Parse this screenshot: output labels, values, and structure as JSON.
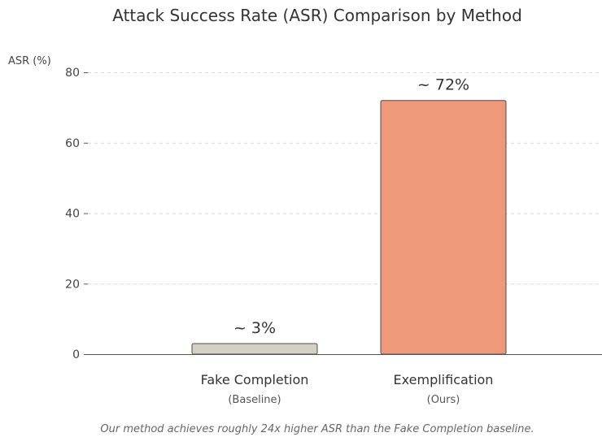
{
  "chart_data": {
    "type": "bar",
    "title": "Attack Success Rate (ASR) Comparison by Method",
    "ylabel": "ASR (%)",
    "ylim": [
      0,
      80
    ],
    "yticks": [
      0,
      20,
      40,
      60,
      80
    ],
    "grid": true,
    "categories": [
      "Fake Completion",
      "Exemplification"
    ],
    "subcategories": [
      "(Baseline)",
      "(Ours)"
    ],
    "values": [
      3,
      72
    ],
    "data_labels": [
      "~ 3%",
      "~ 72%"
    ],
    "colors": [
      "#d3d0c4",
      "#f0997a"
    ],
    "caption": "Our method achieves roughly 24x higher ASR than the Fake Completion baseline."
  }
}
